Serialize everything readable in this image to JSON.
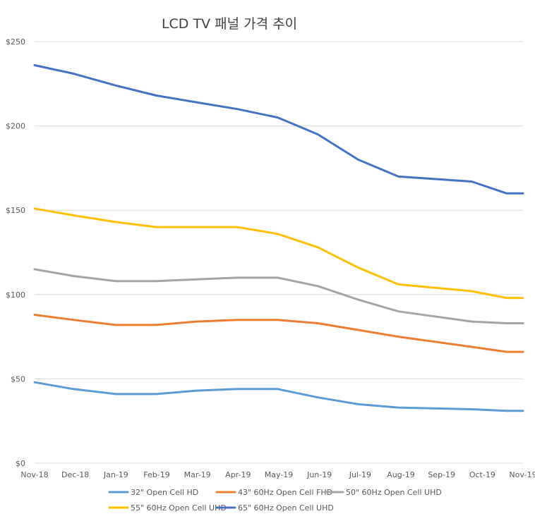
{
  "chart_data": {
    "type": "line",
    "title": "LCD TV 패널 가격 추이",
    "xlabel": "",
    "ylabel": "",
    "x": [
      "Nov-18",
      "Dec-18",
      "Jan-19",
      "Feb-19",
      "Mar-19",
      "Apr-19",
      "May-19",
      "Jun-19",
      "Jul-19",
      "Aug-19",
      "Sep-19",
      "Oct-19",
      "Nov-19"
    ],
    "x_numeric": [
      0,
      1,
      2,
      3,
      4,
      5,
      6,
      7,
      8,
      9,
      10,
      11,
      12
    ],
    "ylim": [
      0,
      250
    ],
    "yticks": [
      0,
      50,
      100,
      150,
      200,
      250
    ],
    "ytick_labels": [
      "$0",
      "$50",
      "$100",
      "$150",
      "$200",
      "$250"
    ],
    "grid": "horizontal",
    "legend_position": "bottom",
    "series": [
      {
        "name": "32\" Open Cell HD",
        "color": "#5B9BD5",
        "points": [
          [
            0,
            48
          ],
          [
            0.95,
            44
          ],
          [
            1.99,
            41
          ],
          [
            2.99,
            41
          ],
          [
            3.98,
            43
          ],
          [
            4.98,
            44
          ],
          [
            5.97,
            44
          ],
          [
            6.96,
            39
          ],
          [
            7.95,
            35
          ],
          [
            8.94,
            33
          ],
          [
            10.74,
            32
          ],
          [
            11.6,
            31
          ],
          [
            12,
            31
          ]
        ]
      },
      {
        "name": "43\" 60Hz Open Cell FHD",
        "color": "#ED7D31",
        "points": [
          [
            0,
            88
          ],
          [
            0.95,
            85
          ],
          [
            1.99,
            82
          ],
          [
            2.99,
            82
          ],
          [
            3.98,
            84
          ],
          [
            4.98,
            85
          ],
          [
            5.97,
            85
          ],
          [
            6.96,
            83
          ],
          [
            7.95,
            79
          ],
          [
            8.94,
            75
          ],
          [
            10.74,
            69
          ],
          [
            11.6,
            66
          ],
          [
            12,
            66
          ]
        ]
      },
      {
        "name": "50\" 60Hz Open Cell UHD",
        "color": "#A5A5A5",
        "points": [
          [
            0,
            115
          ],
          [
            0.95,
            111
          ],
          [
            1.99,
            108
          ],
          [
            2.99,
            108
          ],
          [
            3.98,
            109
          ],
          [
            4.98,
            110
          ],
          [
            5.97,
            110
          ],
          [
            6.96,
            105
          ],
          [
            7.95,
            97
          ],
          [
            8.94,
            90
          ],
          [
            10.74,
            84
          ],
          [
            11.6,
            83
          ],
          [
            12,
            83
          ]
        ]
      },
      {
        "name": "55\" 60Hz Open Cell UHD",
        "color": "#FFC000",
        "points": [
          [
            0,
            151
          ],
          [
            0.95,
            147
          ],
          [
            1.99,
            143
          ],
          [
            2.99,
            140
          ],
          [
            3.98,
            140
          ],
          [
            4.98,
            140
          ],
          [
            5.97,
            136
          ],
          [
            6.96,
            128
          ],
          [
            7.95,
            116
          ],
          [
            8.94,
            106
          ],
          [
            10.74,
            102
          ],
          [
            11.6,
            98
          ],
          [
            12,
            98
          ]
        ]
      },
      {
        "name": "65\" 60Hz Open Cell UHD",
        "color": "#4472C4",
        "points": [
          [
            0,
            236
          ],
          [
            0.95,
            231
          ],
          [
            1.99,
            224
          ],
          [
            2.99,
            218
          ],
          [
            3.98,
            214
          ],
          [
            4.98,
            210
          ],
          [
            5.97,
            205
          ],
          [
            6.96,
            195
          ],
          [
            7.95,
            180
          ],
          [
            8.94,
            170
          ],
          [
            10.74,
            167
          ],
          [
            11.6,
            160
          ],
          [
            12,
            160
          ]
        ]
      }
    ]
  }
}
